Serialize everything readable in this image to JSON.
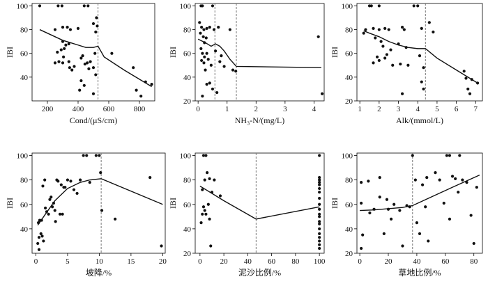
{
  "chart_data": [
    {
      "type": "scatter",
      "xlabel": "Cond/(μS/cm)",
      "ylabel": "IBI",
      "xlim": [
        100,
        900
      ],
      "ylim": [
        20,
        102
      ],
      "xticks": [
        200,
        400,
        600,
        800
      ],
      "yticks": [
        40,
        60,
        80,
        100
      ],
      "breakpoints": [
        530
      ],
      "points": [
        [
          150,
          100
        ],
        [
          270,
          100
        ],
        [
          295,
          100
        ],
        [
          440,
          100
        ],
        [
          465,
          100
        ],
        [
          250,
          80
        ],
        [
          300,
          82
        ],
        [
          330,
          82
        ],
        [
          350,
          80
        ],
        [
          400,
          81
        ],
        [
          500,
          85
        ],
        [
          515,
          78
        ],
        [
          525,
          83
        ],
        [
          520,
          90
        ],
        [
          300,
          70
        ],
        [
          320,
          67
        ],
        [
          340,
          68
        ],
        [
          265,
          61
        ],
        [
          290,
          63
        ],
        [
          305,
          57
        ],
        [
          310,
          64
        ],
        [
          250,
          52
        ],
        [
          275,
          53
        ],
        [
          300,
          52
        ],
        [
          340,
          53
        ],
        [
          345,
          48
        ],
        [
          360,
          46
        ],
        [
          375,
          49
        ],
        [
          420,
          56
        ],
        [
          445,
          51
        ],
        [
          460,
          52
        ],
        [
          470,
          47
        ],
        [
          500,
          48
        ],
        [
          515,
          42
        ],
        [
          510,
          60
        ],
        [
          430,
          58
        ],
        [
          480,
          53
        ],
        [
          420,
          37
        ],
        [
          440,
          33
        ],
        [
          410,
          29
        ],
        [
          500,
          26
        ],
        [
          620,
          60
        ],
        [
          760,
          48
        ],
        [
          780,
          29
        ],
        [
          810,
          24
        ],
        [
          840,
          36
        ],
        [
          880,
          34
        ]
      ],
      "trend": [
        [
          150,
          80
        ],
        [
          250,
          74
        ],
        [
          300,
          71
        ],
        [
          350,
          69
        ],
        [
          400,
          67
        ],
        [
          450,
          65
        ],
        [
          500,
          65
        ],
        [
          530,
          66
        ],
        [
          570,
          57
        ],
        [
          700,
          46
        ],
        [
          880,
          32
        ]
      ]
    },
    {
      "type": "scatter",
      "xlabel": "NH₃-N/(mg/L)",
      "ylabel": "IBI",
      "xlim": [
        -0.1,
        4.35
      ],
      "ylim": [
        20,
        102
      ],
      "xticks": [
        0,
        1,
        2,
        3,
        4
      ],
      "yticks": [
        20,
        40,
        60,
        80,
        100
      ],
      "breakpoints": [
        0.58,
        1.32
      ],
      "points": [
        [
          0.1,
          100
        ],
        [
          0.15,
          100
        ],
        [
          0.5,
          100
        ],
        [
          0.05,
          86
        ],
        [
          0.12,
          82
        ],
        [
          0.2,
          80
        ],
        [
          0.3,
          81
        ],
        [
          0.4,
          82
        ],
        [
          0.55,
          80
        ],
        [
          0.7,
          82
        ],
        [
          1.1,
          80
        ],
        [
          0.08,
          77
        ],
        [
          0.18,
          74
        ],
        [
          0.22,
          69
        ],
        [
          0.28,
          73
        ],
        [
          0.1,
          64
        ],
        [
          0.15,
          60
        ],
        [
          0.22,
          57
        ],
        [
          0.3,
          60
        ],
        [
          0.12,
          54
        ],
        [
          0.2,
          52
        ],
        [
          0.35,
          55
        ],
        [
          0.45,
          50
        ],
        [
          0.6,
          62
        ],
        [
          0.8,
          58
        ],
        [
          0.75,
          53
        ],
        [
          0.9,
          49
        ],
        [
          1.2,
          46
        ],
        [
          1.3,
          45
        ],
        [
          0.25,
          46
        ],
        [
          0.3,
          34
        ],
        [
          0.4,
          35
        ],
        [
          0.5,
          30
        ],
        [
          0.15,
          24
        ],
        [
          0.65,
          27
        ],
        [
          4.15,
          74
        ],
        [
          4.28,
          26
        ]
      ],
      "trend": [
        [
          0,
          72
        ],
        [
          0.25,
          69
        ],
        [
          0.45,
          66
        ],
        [
          0.6,
          68
        ],
        [
          0.75,
          66
        ],
        [
          0.9,
          62
        ],
        [
          1.1,
          55
        ],
        [
          1.32,
          49
        ],
        [
          4.25,
          48
        ]
      ]
    },
    {
      "type": "scatter",
      "xlabel": "Alk/(mmol/L)",
      "ylabel": "IBI",
      "xlim": [
        0.85,
        7.35
      ],
      "ylim": [
        20,
        102
      ],
      "xticks": [
        1,
        2,
        3,
        4,
        5,
        6,
        7
      ],
      "yticks": [
        20,
        40,
        60,
        80,
        100
      ],
      "breakpoints": [
        4.4
      ],
      "points": [
        [
          1.2,
          77
        ],
        [
          1.3,
          80
        ],
        [
          1.5,
          100
        ],
        [
          1.6,
          100
        ],
        [
          2.0,
          100
        ],
        [
          3.8,
          100
        ],
        [
          4.0,
          100
        ],
        [
          4.6,
          86
        ],
        [
          4.8,
          78
        ],
        [
          1.7,
          81
        ],
        [
          2.0,
          80
        ],
        [
          2.3,
          81
        ],
        [
          2.5,
          80
        ],
        [
          3.2,
          82
        ],
        [
          3.3,
          80
        ],
        [
          4.2,
          81
        ],
        [
          1.8,
          73
        ],
        [
          2.1,
          70
        ],
        [
          2.2,
          66
        ],
        [
          2.6,
          63
        ],
        [
          3.0,
          68
        ],
        [
          3.4,
          65
        ],
        [
          1.9,
          57
        ],
        [
          2.0,
          54
        ],
        [
          2.3,
          56
        ],
        [
          2.4,
          59
        ],
        [
          1.7,
          52
        ],
        [
          2.7,
          50
        ],
        [
          3.1,
          51
        ],
        [
          3.5,
          50
        ],
        [
          4.1,
          58
        ],
        [
          4.3,
          48
        ],
        [
          4.2,
          36
        ],
        [
          4.3,
          30
        ],
        [
          3.2,
          26
        ],
        [
          6.4,
          45
        ],
        [
          6.5,
          39
        ],
        [
          6.6,
          30
        ],
        [
          6.7,
          26
        ],
        [
          6.8,
          38
        ],
        [
          7.1,
          35
        ]
      ],
      "trend": [
        [
          1.2,
          79
        ],
        [
          1.5,
          77
        ],
        [
          2.0,
          74
        ],
        [
          2.5,
          70
        ],
        [
          3.0,
          67
        ],
        [
          3.5,
          65
        ],
        [
          4.0,
          64
        ],
        [
          4.4,
          64
        ],
        [
          5.0,
          56
        ],
        [
          6.0,
          46
        ],
        [
          7.1,
          35
        ]
      ]
    },
    {
      "type": "scatter",
      "xlabel": "坡降/%",
      "ylabel": "IBI",
      "xlim": [
        -0.6,
        20.4
      ],
      "ylim": [
        20,
        102
      ],
      "xticks": [
        0,
        5,
        10,
        15,
        20
      ],
      "yticks": [
        40,
        60,
        80,
        100
      ],
      "breakpoints": [
        10.3
      ],
      "points": [
        [
          0.3,
          28
        ],
        [
          0.5,
          33
        ],
        [
          0.5,
          23
        ],
        [
          0.8,
          36
        ],
        [
          1.0,
          34
        ],
        [
          1.2,
          30
        ],
        [
          0.4,
          45
        ],
        [
          0.6,
          47
        ],
        [
          0.9,
          47
        ],
        [
          1.1,
          75
        ],
        [
          1.4,
          80
        ],
        [
          1.5,
          57
        ],
        [
          1.7,
          54
        ],
        [
          2.0,
          52
        ],
        [
          2.2,
          64
        ],
        [
          2.4,
          66
        ],
        [
          2.6,
          58
        ],
        [
          2.8,
          61
        ],
        [
          3.0,
          55
        ],
        [
          3.1,
          46
        ],
        [
          3.3,
          80
        ],
        [
          3.5,
          79
        ],
        [
          3.8,
          52
        ],
        [
          4.0,
          76
        ],
        [
          4.2,
          52
        ],
        [
          4.4,
          74
        ],
        [
          4.6,
          74
        ],
        [
          5.0,
          80
        ],
        [
          5.5,
          79
        ],
        [
          6.0,
          72
        ],
        [
          6.5,
          69
        ],
        [
          7.0,
          80
        ],
        [
          7.5,
          100
        ],
        [
          8.0,
          100
        ],
        [
          8.5,
          78
        ],
        [
          9.5,
          100
        ],
        [
          10.0,
          100
        ],
        [
          10.2,
          86
        ],
        [
          10.4,
          55
        ],
        [
          12.5,
          48
        ],
        [
          18.0,
          82
        ],
        [
          19.8,
          26
        ]
      ],
      "trend": [
        [
          0.3,
          43
        ],
        [
          1.5,
          52
        ],
        [
          3.0,
          63
        ],
        [
          5.0,
          73
        ],
        [
          7.0,
          78
        ],
        [
          8.5,
          80
        ],
        [
          10.3,
          81
        ],
        [
          20.0,
          60
        ]
      ]
    },
    {
      "type": "scatter",
      "xlabel": "泥沙比例/%",
      "ylabel": "IBI",
      "xlim": [
        -4,
        104
      ],
      "ylim": [
        20,
        102
      ],
      "xticks": [
        0,
        20,
        40,
        60,
        80,
        100
      ],
      "yticks": [
        20,
        40,
        60,
        80,
        100
      ],
      "breakpoints": [
        47
      ],
      "points": [
        [
          3,
          100
        ],
        [
          5,
          100
        ],
        [
          6,
          86
        ],
        [
          4,
          80
        ],
        [
          8,
          81
        ],
        [
          12,
          80
        ],
        [
          2,
          72
        ],
        [
          10,
          70
        ],
        [
          17,
          67
        ],
        [
          3,
          58
        ],
        [
          4,
          55
        ],
        [
          7,
          60
        ],
        [
          2,
          52
        ],
        [
          5,
          52
        ],
        [
          8,
          48
        ],
        [
          1,
          45
        ],
        [
          9,
          26
        ],
        [
          100,
          100
        ],
        [
          100,
          82
        ],
        [
          100,
          80
        ],
        [
          100,
          78
        ],
        [
          100,
          76
        ],
        [
          100,
          73
        ],
        [
          100,
          70
        ],
        [
          100,
          65
        ],
        [
          100,
          60
        ],
        [
          100,
          56
        ],
        [
          100,
          52
        ],
        [
          100,
          50
        ],
        [
          100,
          46
        ],
        [
          100,
          44
        ],
        [
          100,
          40
        ],
        [
          100,
          36
        ],
        [
          100,
          33
        ],
        [
          100,
          30
        ],
        [
          100,
          27
        ],
        [
          100,
          24
        ]
      ],
      "trend": [
        [
          0,
          75
        ],
        [
          20,
          63
        ],
        [
          47,
          48
        ],
        [
          100,
          58
        ]
      ]
    },
    {
      "type": "scatter",
      "xlabel": "草地比例/%",
      "ylabel": "IBI",
      "xlim": [
        -2,
        86
      ],
      "ylim": [
        20,
        102
      ],
      "xticks": [
        0,
        20,
        40,
        60,
        80
      ],
      "yticks": [
        20,
        40,
        60,
        80,
        100
      ],
      "breakpoints": [
        37
      ],
      "points": [
        [
          1,
          78
        ],
        [
          1,
          61
        ],
        [
          1,
          24
        ],
        [
          2,
          35
        ],
        [
          6,
          79
        ],
        [
          7,
          53
        ],
        [
          10,
          56
        ],
        [
          14,
          82
        ],
        [
          14,
          66
        ],
        [
          19,
          64
        ],
        [
          17,
          36
        ],
        [
          20,
          56
        ],
        [
          22,
          48
        ],
        [
          24,
          60
        ],
        [
          28,
          55
        ],
        [
          30,
          26
        ],
        [
          33,
          59
        ],
        [
          35,
          58
        ],
        [
          37,
          100
        ],
        [
          39,
          80
        ],
        [
          40,
          45
        ],
        [
          42,
          36
        ],
        [
          44,
          76
        ],
        [
          46,
          58
        ],
        [
          47,
          82
        ],
        [
          48,
          30
        ],
        [
          53,
          86
        ],
        [
          56,
          80
        ],
        [
          59,
          61
        ],
        [
          61,
          100
        ],
        [
          63,
          100
        ],
        [
          63,
          48
        ],
        [
          65,
          83
        ],
        [
          67,
          81
        ],
        [
          69,
          70
        ],
        [
          70,
          100
        ],
        [
          72,
          80
        ],
        [
          75,
          78
        ],
        [
          78,
          51
        ],
        [
          82,
          74
        ],
        [
          80,
          28
        ]
      ],
      "trend": [
        [
          0,
          55
        ],
        [
          10,
          55.5
        ],
        [
          20,
          56.5
        ],
        [
          30,
          57.5
        ],
        [
          37,
          59
        ],
        [
          50,
          66
        ],
        [
          65,
          74
        ],
        [
          84,
          84
        ]
      ]
    }
  ]
}
